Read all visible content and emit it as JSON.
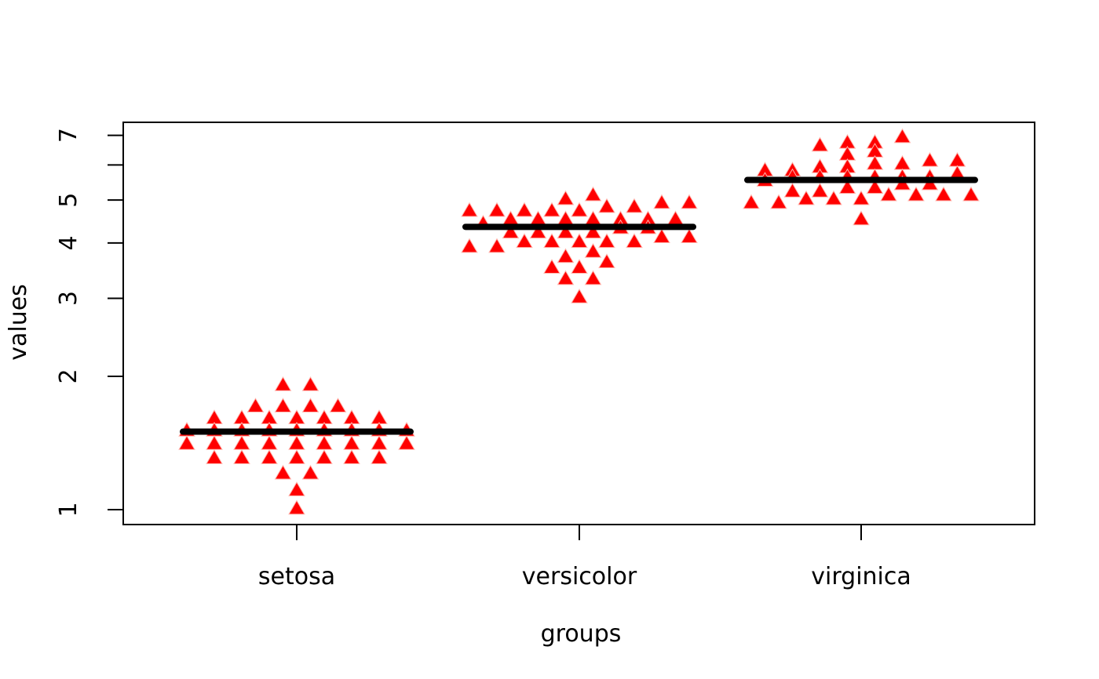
{
  "chart_data": {
    "type": "beeswarm",
    "title": "",
    "xlabel": "groups",
    "ylabel": "values",
    "y_scale": "log",
    "ylim": [
      1,
      7.1
    ],
    "grid": false,
    "legend": "none",
    "y_ticks": [
      {
        "v": 1,
        "label": "1"
      },
      {
        "v": 2,
        "label": "2"
      },
      {
        "v": 3,
        "label": "3"
      },
      {
        "v": 4,
        "label": "4"
      },
      {
        "v": 5,
        "label": "5"
      },
      {
        "v": 6,
        "label": ""
      },
      {
        "v": 7,
        "label": "7"
      }
    ],
    "categories": [
      "setosa",
      "versicolor",
      "virginica"
    ],
    "series": [
      {
        "name": "setosa",
        "median": 1.5,
        "values": [
          1.4,
          1.4,
          1.3,
          1.5,
          1.4,
          1.7,
          1.4,
          1.5,
          1.4,
          1.5,
          1.5,
          1.6,
          1.4,
          1.1,
          1.2,
          1.5,
          1.3,
          1.4,
          1.7,
          1.5,
          1.7,
          1.5,
          1.0,
          1.7,
          1.9,
          1.6,
          1.6,
          1.5,
          1.4,
          1.6,
          1.6,
          1.5,
          1.5,
          1.4,
          1.5,
          1.2,
          1.3,
          1.4,
          1.3,
          1.5,
          1.3,
          1.3,
          1.3,
          1.6,
          1.9,
          1.4,
          1.6,
          1.4,
          1.5,
          1.4
        ]
      },
      {
        "name": "versicolor",
        "median": 4.35,
        "values": [
          4.7,
          4.5,
          4.9,
          4.0,
          4.6,
          4.5,
          4.7,
          3.3,
          4.6,
          3.9,
          3.5,
          4.2,
          4.0,
          4.7,
          3.6,
          4.4,
          4.5,
          4.1,
          4.5,
          3.9,
          4.8,
          4.0,
          4.9,
          4.7,
          4.3,
          4.4,
          4.8,
          5.0,
          4.5,
          3.5,
          3.8,
          3.7,
          3.9,
          5.1,
          4.5,
          4.5,
          4.7,
          4.4,
          4.1,
          4.0,
          4.4,
          4.6,
          4.0,
          3.3,
          4.2,
          4.2,
          4.2,
          4.3,
          3.0,
          4.1
        ]
      },
      {
        "name": "virginica",
        "median": 5.55,
        "values": [
          6.0,
          5.1,
          5.9,
          5.6,
          5.8,
          6.6,
          4.5,
          6.3,
          5.8,
          6.1,
          5.1,
          5.3,
          5.5,
          5.0,
          5.1,
          5.3,
          5.5,
          6.7,
          6.9,
          5.0,
          5.7,
          4.9,
          6.7,
          4.9,
          5.7,
          6.0,
          4.8,
          4.9,
          5.6,
          5.8,
          6.1,
          6.4,
          5.6,
          5.1,
          5.6,
          6.1,
          5.6,
          5.5,
          4.8,
          5.4,
          5.6,
          5.1,
          5.1,
          5.9,
          5.7,
          5.2,
          5.0,
          5.2,
          5.4,
          5.1
        ]
      }
    ],
    "marker": {
      "shape": "triangle-up",
      "color": "#ff0000",
      "edge_color": "#ffb3ab"
    },
    "median_line_color": "#000000",
    "axis_color": "#000000",
    "background_color": "#ffffff"
  }
}
